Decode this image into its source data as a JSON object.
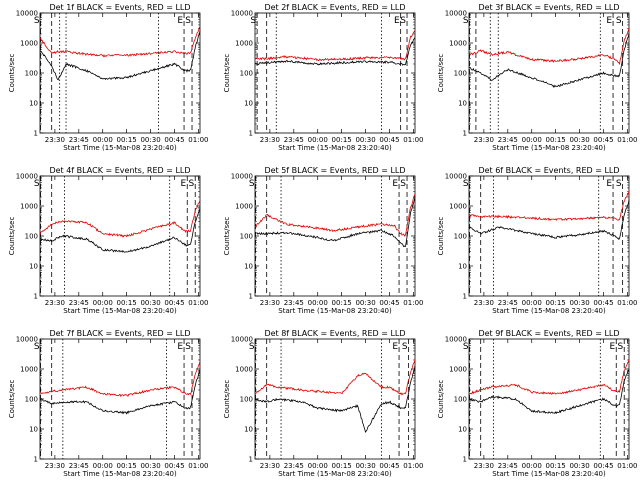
{
  "colors": {
    "events": "#000000",
    "lld": "#e00000",
    "axes": "#000000",
    "background": "#ffffff"
  },
  "chart_data": [
    {
      "type": "line",
      "title": "Det 1f BLACK = Events, RED = LLD",
      "xlabel": "Start Time (15-Mar-08 23:20:40)",
      "ylabel": "Counts/sec",
      "yscale": "log",
      "ylim": [
        1,
        10000
      ],
      "xlim": [
        "23:20:40",
        "01:01"
      ],
      "x_ticks": [
        "23:30",
        "23:45",
        "00:00",
        "00:15",
        "00:30",
        "00:45",
        "01:00"
      ],
      "y_ticks": [
        "1",
        "10",
        "100",
        "1000",
        "10000"
      ],
      "markers": [
        {
          "label": "S",
          "time": "23:21"
        },
        {
          "label": "",
          "time": "23:28"
        },
        {
          "label": "",
          "time": "23:33"
        },
        {
          "label": "",
          "time": "23:37"
        },
        {
          "label": "",
          "time": "00:35"
        },
        {
          "label": "E",
          "time": "00:51"
        },
        {
          "label": "S",
          "time": "00:56"
        }
      ],
      "series": [
        {
          "x": [
            "23:20:40",
            "23:28",
            "23:32",
            "23:37",
            "23:50",
            "00:00",
            "00:15",
            "00:30",
            "00:45",
            "00:52",
            "00:55",
            "00:58",
            "01:01"
          ],
          "values": [
            1500,
            450,
            520,
            520,
            420,
            380,
            390,
            450,
            520,
            450,
            450,
            1500,
            3500
          ]
        },
        {
          "x": [
            "23:20:40",
            "23:28",
            "23:32",
            "23:37",
            "23:50",
            "00:00",
            "00:15",
            "00:30",
            "00:45",
            "00:52",
            "00:55",
            "00:58",
            "01:01"
          ],
          "values": [
            600,
            170,
            60,
            200,
            120,
            65,
            70,
            120,
            200,
            120,
            120,
            700,
            2500
          ]
        }
      ]
    },
    {
      "type": "line",
      "title": "Det 2f BLACK = Events, RED = LLD",
      "xlabel": "Start Time (15-Mar-08 23:20:40)",
      "ylabel": "Counts/sec",
      "yscale": "log",
      "ylim": [
        1,
        10000
      ],
      "xlim": [
        "23:20:40",
        "01:01"
      ],
      "x_ticks": [
        "23:30",
        "23:45",
        "00:00",
        "00:15",
        "00:30",
        "00:45",
        "01:00"
      ],
      "y_ticks": [
        "1",
        "10",
        "100",
        "1000",
        "10000"
      ],
      "markers": [
        {
          "label": "S",
          "time": "23:22"
        },
        {
          "label": "",
          "time": "23:28"
        },
        {
          "label": "",
          "time": "23:34"
        },
        {
          "label": "",
          "time": "00:40"
        },
        {
          "label": "E",
          "time": "00:52"
        },
        {
          "label": "S",
          "time": "00:56"
        }
      ],
      "series": [
        {
          "x": [
            "23:20:40",
            "23:28",
            "23:40",
            "00:00",
            "00:15",
            "00:30",
            "00:45",
            "00:52",
            "00:55",
            "00:58",
            "01:01"
          ],
          "values": [
            300,
            300,
            350,
            280,
            290,
            320,
            330,
            300,
            280,
            1500,
            2500
          ]
        },
        {
          "x": [
            "23:20:40",
            "23:28",
            "23:40",
            "00:00",
            "00:15",
            "00:30",
            "00:45",
            "00:52",
            "00:55",
            "00:58",
            "01:01"
          ],
          "values": [
            200,
            220,
            250,
            200,
            220,
            240,
            230,
            200,
            180,
            800,
            1500
          ]
        }
      ]
    },
    {
      "type": "line",
      "title": "Det 3f BLACK = Events, RED = LLD",
      "xlabel": "Start Time (15-Mar-08 23:20:40)",
      "ylabel": "Counts/sec",
      "yscale": "log",
      "ylim": [
        1,
        10000
      ],
      "xlim": [
        "23:20:40",
        "01:01"
      ],
      "x_ticks": [
        "23:30",
        "23:45",
        "00:00",
        "00:15",
        "00:30",
        "00:45",
        "01:00"
      ],
      "y_ticks": [
        "1",
        "10",
        "100",
        "1000",
        "10000"
      ],
      "markers": [
        {
          "label": "S",
          "time": "23:21"
        },
        {
          "label": "",
          "time": "23:25"
        },
        {
          "label": "",
          "time": "23:34"
        },
        {
          "label": "",
          "time": "23:39"
        },
        {
          "label": "",
          "time": "00:43"
        },
        {
          "label": "E",
          "time": "00:51"
        },
        {
          "label": "S",
          "time": "00:57"
        }
      ],
      "series": [
        {
          "x": [
            "23:20:40",
            "23:28",
            "23:35",
            "23:45",
            "00:00",
            "00:15",
            "00:30",
            "00:45",
            "00:52",
            "00:55",
            "00:58",
            "01:01"
          ],
          "values": [
            400,
            550,
            420,
            500,
            280,
            250,
            300,
            400,
            300,
            200,
            1200,
            3000
          ]
        },
        {
          "x": [
            "23:20:40",
            "23:28",
            "23:35",
            "23:45",
            "00:00",
            "00:15",
            "00:30",
            "00:45",
            "00:52",
            "00:55",
            "00:58",
            "01:01"
          ],
          "values": [
            150,
            100,
            60,
            130,
            70,
            35,
            60,
            100,
            80,
            80,
            600,
            2000
          ]
        }
      ]
    },
    {
      "type": "line",
      "title": "Det 4f BLACK = Events, RED = LLD",
      "xlabel": "Start Time (15-Mar-08 23:20:40)",
      "ylabel": "Counts/sec",
      "yscale": "log",
      "ylim": [
        1,
        10000
      ],
      "xlim": [
        "23:20:40",
        "01:01"
      ],
      "x_ticks": [
        "23:30",
        "23:45",
        "00:00",
        "00:15",
        "00:30",
        "00:45",
        "01:00"
      ],
      "y_ticks": [
        "1",
        "10",
        "100",
        "1000",
        "10000"
      ],
      "markers": [
        {
          "label": "S",
          "time": "23:21"
        },
        {
          "label": "",
          "time": "23:28"
        },
        {
          "label": "",
          "time": "23:36"
        },
        {
          "label": "",
          "time": "00:42"
        },
        {
          "label": "E",
          "time": "00:53"
        },
        {
          "label": "S",
          "time": "00:58"
        }
      ],
      "series": [
        {
          "x": [
            "23:20:40",
            "23:28",
            "23:35",
            "23:50",
            "00:00",
            "00:15",
            "00:30",
            "00:45",
            "00:52",
            "00:55",
            "00:58",
            "01:01"
          ],
          "values": [
            120,
            250,
            320,
            280,
            120,
            100,
            170,
            280,
            140,
            150,
            700,
            1500
          ]
        },
        {
          "x": [
            "23:20:40",
            "23:28",
            "23:35",
            "23:50",
            "00:00",
            "00:15",
            "00:30",
            "00:45",
            "00:52",
            "00:55",
            "00:58",
            "01:01"
          ],
          "values": [
            80,
            70,
            100,
            80,
            35,
            30,
            45,
            90,
            50,
            50,
            300,
            800
          ]
        }
      ]
    },
    {
      "type": "line",
      "title": "Det 5f BLACK = Events, RED = LLD",
      "xlabel": "Start Time (15-Mar-08 23:20:40)",
      "ylabel": "Counts/sec",
      "yscale": "log",
      "ylim": [
        1,
        10000
      ],
      "xlim": [
        "23:20:40",
        "01:01"
      ],
      "x_ticks": [
        "23:30",
        "23:45",
        "00:00",
        "00:15",
        "00:30",
        "00:45",
        "01:00"
      ],
      "y_ticks": [
        "1",
        "10",
        "100",
        "1000",
        "10000"
      ],
      "markers": [
        {
          "label": "S",
          "time": "23:21"
        },
        {
          "label": "",
          "time": "23:28"
        },
        {
          "label": "",
          "time": "23:37"
        },
        {
          "label": "",
          "time": "00:40"
        },
        {
          "label": "E",
          "time": "00:51"
        },
        {
          "label": "S",
          "time": "00:56"
        }
      ],
      "series": [
        {
          "x": [
            "23:20:40",
            "23:28",
            "23:40",
            "23:55",
            "00:10",
            "00:25",
            "00:40",
            "00:48",
            "00:52",
            "00:55",
            "00:58",
            "01:01"
          ],
          "values": [
            200,
            500,
            250,
            200,
            150,
            200,
            250,
            220,
            120,
            100,
            800,
            2500
          ]
        },
        {
          "x": [
            "23:20:40",
            "23:28",
            "23:40",
            "23:55",
            "00:10",
            "00:25",
            "00:40",
            "00:48",
            "00:52",
            "00:55",
            "00:58",
            "01:01"
          ],
          "values": [
            120,
            120,
            130,
            100,
            70,
            120,
            150,
            100,
            60,
            40,
            500,
            2000
          ]
        }
      ]
    },
    {
      "type": "line",
      "title": "Det 6f BLACK = Events, RED = LLD",
      "xlabel": "Start Time (15-Mar-08 23:20:40)",
      "ylabel": "Counts/sec",
      "yscale": "log",
      "ylim": [
        1,
        10000
      ],
      "xlim": [
        "23:20:40",
        "01:01"
      ],
      "x_ticks": [
        "23:30",
        "23:45",
        "00:00",
        "00:15",
        "00:30",
        "00:45",
        "01:00"
      ],
      "y_ticks": [
        "1",
        "10",
        "100",
        "1000",
        "10000"
      ],
      "markers": [
        {
          "label": "S",
          "time": "23:21"
        },
        {
          "label": "",
          "time": "23:28"
        },
        {
          "label": "",
          "time": "23:36"
        },
        {
          "label": "",
          "time": "00:42"
        },
        {
          "label": "E",
          "time": "00:51"
        },
        {
          "label": "S",
          "time": "00:57"
        }
      ],
      "series": [
        {
          "x": [
            "23:20:40",
            "23:28",
            "23:40",
            "00:00",
            "00:15",
            "00:30",
            "00:45",
            "00:52",
            "00:55",
            "00:58",
            "01:01"
          ],
          "values": [
            500,
            450,
            450,
            400,
            350,
            380,
            420,
            380,
            350,
            1500,
            3000
          ]
        },
        {
          "x": [
            "23:20:40",
            "23:28",
            "23:40",
            "00:00",
            "00:15",
            "00:30",
            "00:45",
            "00:52",
            "00:55",
            "00:58",
            "01:01"
          ],
          "values": [
            200,
            120,
            200,
            120,
            90,
            110,
            150,
            100,
            80,
            500,
            1500
          ]
        }
      ]
    },
    {
      "type": "line",
      "title": "Det 7f BLACK = Events, RED = LLD",
      "xlabel": "Start Time (15-Mar-08 23:20:40)",
      "ylabel": "Counts/sec",
      "yscale": "log",
      "ylim": [
        1,
        10000
      ],
      "xlim": [
        "23:20:40",
        "01:01"
      ],
      "x_ticks": [
        "23:30",
        "23:45",
        "00:00",
        "00:15",
        "00:30",
        "00:45",
        "01:00"
      ],
      "y_ticks": [
        "1",
        "10",
        "100",
        "1000",
        "10000"
      ],
      "markers": [
        {
          "label": "S",
          "time": "23:21"
        },
        {
          "label": "",
          "time": "23:28"
        },
        {
          "label": "",
          "time": "23:35"
        },
        {
          "label": "",
          "time": "00:40"
        },
        {
          "label": "E",
          "time": "00:51"
        },
        {
          "label": "S",
          "time": "00:56"
        }
      ],
      "series": [
        {
          "x": [
            "23:20:40",
            "23:28",
            "23:35",
            "23:50",
            "00:00",
            "00:15",
            "00:30",
            "00:45",
            "00:52",
            "00:55",
            "00:58",
            "01:01"
          ],
          "values": [
            150,
            180,
            200,
            250,
            150,
            130,
            200,
            250,
            150,
            140,
            700,
            1800
          ]
        },
        {
          "x": [
            "23:20:40",
            "23:28",
            "23:35",
            "23:50",
            "00:00",
            "00:15",
            "00:30",
            "00:45",
            "00:52",
            "00:55",
            "00:58",
            "01:01"
          ],
          "values": [
            100,
            70,
            80,
            80,
            40,
            35,
            60,
            80,
            50,
            50,
            300,
            900
          ]
        }
      ]
    },
    {
      "type": "line",
      "title": "Det 8f BLACK = Events, RED = LLD",
      "xlabel": "Start Time (15-Mar-08 23:20:40)",
      "ylabel": "Counts/sec",
      "yscale": "log",
      "ylim": [
        1,
        10000
      ],
      "xlim": [
        "23:20:40",
        "01:01"
      ],
      "x_ticks": [
        "23:30",
        "23:45",
        "00:00",
        "00:15",
        "00:30",
        "00:45",
        "01:00"
      ],
      "y_ticks": [
        "1",
        "10",
        "100",
        "1000",
        "10000"
      ],
      "markers": [
        {
          "label": "S",
          "time": "23:21"
        },
        {
          "label": "",
          "time": "23:28"
        },
        {
          "label": "",
          "time": "23:37"
        },
        {
          "label": "",
          "time": "00:40"
        },
        {
          "label": "E",
          "time": "00:51"
        },
        {
          "label": "S",
          "time": "00:57"
        }
      ],
      "series": [
        {
          "x": [
            "23:20:40",
            "23:28",
            "23:35",
            "23:50",
            "00:00",
            "00:15",
            "00:25",
            "00:30",
            "00:40",
            "00:45",
            "00:52",
            "00:55",
            "00:58",
            "01:01"
          ],
          "values": [
            150,
            300,
            250,
            200,
            180,
            150,
            600,
            700,
            250,
            250,
            150,
            150,
            700,
            2000
          ]
        },
        {
          "x": [
            "23:20:40",
            "23:28",
            "23:35",
            "23:50",
            "00:00",
            "00:15",
            "00:25",
            "00:30",
            "00:40",
            "00:45",
            "00:52",
            "00:55",
            "00:58",
            "01:01"
          ],
          "values": [
            100,
            80,
            100,
            80,
            50,
            40,
            60,
            8,
            70,
            80,
            50,
            50,
            300,
            1200
          ]
        }
      ]
    },
    {
      "type": "line",
      "title": "Det 9f BLACK = Events, RED = LLD",
      "xlabel": "Start Time (15-Mar-08 23:20:40)",
      "ylabel": "Counts/sec",
      "yscale": "log",
      "ylim": [
        1,
        10000
      ],
      "xlim": [
        "23:20:40",
        "01:01"
      ],
      "x_ticks": [
        "23:30",
        "23:45",
        "00:00",
        "00:15",
        "00:30",
        "00:45",
        "01:00"
      ],
      "y_ticks": [
        "1",
        "10",
        "100",
        "1000",
        "10000"
      ],
      "markers": [
        {
          "label": "S",
          "time": "23:21"
        },
        {
          "label": "",
          "time": "23:28"
        },
        {
          "label": "",
          "time": "23:36"
        },
        {
          "label": "",
          "time": "00:43"
        },
        {
          "label": "E",
          "time": "00:53"
        },
        {
          "label": "S",
          "time": "00:58"
        }
      ],
      "series": [
        {
          "x": [
            "23:20:40",
            "23:28",
            "23:35",
            "23:50",
            "00:00",
            "00:15",
            "00:30",
            "00:45",
            "00:52",
            "00:55",
            "00:58",
            "01:01"
          ],
          "values": [
            150,
            200,
            250,
            300,
            170,
            150,
            200,
            300,
            180,
            180,
            900,
            2000
          ]
        },
        {
          "x": [
            "23:20:40",
            "23:28",
            "23:35",
            "23:50",
            "00:00",
            "00:15",
            "00:30",
            "00:45",
            "00:52",
            "00:55",
            "00:58",
            "01:01"
          ],
          "values": [
            100,
            80,
            120,
            100,
            40,
            35,
            60,
            100,
            60,
            60,
            400,
            1000
          ]
        }
      ]
    }
  ]
}
